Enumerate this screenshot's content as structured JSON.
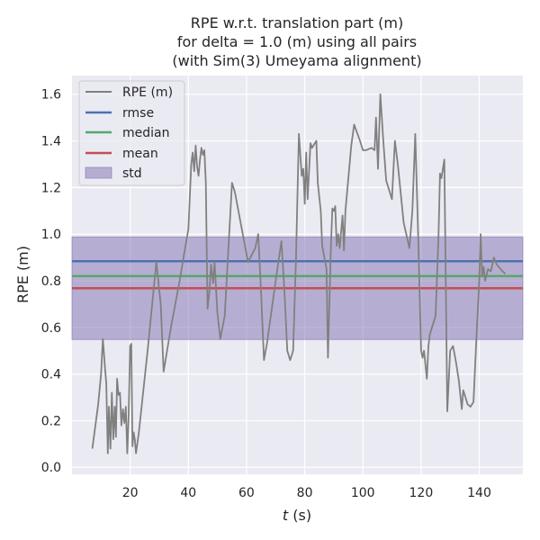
{
  "chart_data": {
    "type": "line",
    "title": [
      "RPE w.r.t. translation part (m)",
      "for delta = 1.0 (m) using all pairs",
      "(with Sim(3) Umeyama alignment)"
    ],
    "xlabel_var": "t",
    "xlabel_unit": " (s)",
    "ylabel": "RPE (m)",
    "xlim": [
      0,
      155
    ],
    "ylim": [
      -0.03,
      1.68
    ],
    "xticks": [
      20,
      40,
      60,
      80,
      100,
      120,
      140
    ],
    "yticks": [
      0.0,
      0.2,
      0.4,
      0.6,
      0.8,
      1.0,
      1.2,
      1.4,
      1.6
    ],
    "ytick_labels": [
      "0.0",
      "0.2",
      "0.4",
      "0.6",
      "0.8",
      "1.0",
      "1.2",
      "1.4",
      "1.6"
    ],
    "grid": true,
    "legend_position": "top-left",
    "series": [
      {
        "name": "RPE (m)",
        "color": "#808080",
        "points": [
          [
            7,
            0.08
          ],
          [
            9,
            0.27
          ],
          [
            10,
            0.4
          ],
          [
            10.6,
            0.55
          ],
          [
            11.4,
            0.42
          ],
          [
            11.8,
            0.36
          ],
          [
            12.3,
            0.06
          ],
          [
            12.7,
            0.26
          ],
          [
            13.2,
            0.08
          ],
          [
            13.7,
            0.32
          ],
          [
            14.2,
            0.12
          ],
          [
            14.7,
            0.26
          ],
          [
            15.1,
            0.13
          ],
          [
            15.5,
            0.38
          ],
          [
            16,
            0.31
          ],
          [
            16.5,
            0.32
          ],
          [
            17,
            0.18
          ],
          [
            17.5,
            0.25
          ],
          [
            18,
            0.19
          ],
          [
            18.5,
            0.26
          ],
          [
            19,
            0.06
          ],
          [
            19.5,
            0.23
          ],
          [
            20,
            0.52
          ],
          [
            20.4,
            0.53
          ],
          [
            20.8,
            0.09
          ],
          [
            21.2,
            0.15
          ],
          [
            21.6,
            0.12
          ],
          [
            22,
            0.06
          ],
          [
            23,
            0.15
          ],
          [
            26,
            0.5
          ],
          [
            29,
            0.88
          ],
          [
            30.5,
            0.7
          ],
          [
            31.5,
            0.41
          ],
          [
            34,
            0.6
          ],
          [
            37,
            0.8
          ],
          [
            39,
            0.95
          ],
          [
            40,
            1.02
          ],
          [
            41,
            1.3
          ],
          [
            41.5,
            1.35
          ],
          [
            42,
            1.27
          ],
          [
            42.5,
            1.38
          ],
          [
            43,
            1.29
          ],
          [
            43.5,
            1.25
          ],
          [
            44,
            1.32
          ],
          [
            44.5,
            1.37
          ],
          [
            45,
            1.34
          ],
          [
            45.5,
            1.36
          ],
          [
            46,
            1.22
          ],
          [
            46.6,
            0.68
          ],
          [
            47.2,
            0.75
          ],
          [
            47.8,
            0.87
          ],
          [
            48.5,
            0.79
          ],
          [
            49,
            0.88
          ],
          [
            50,
            0.66
          ],
          [
            51,
            0.55
          ],
          [
            52.5,
            0.65
          ],
          [
            55,
            1.22
          ],
          [
            56,
            1.18
          ],
          [
            59,
            0.98
          ],
          [
            60.5,
            0.88
          ],
          [
            63,
            0.94
          ],
          [
            64,
            1.0
          ],
          [
            65,
            0.75
          ],
          [
            66,
            0.46
          ],
          [
            67,
            0.53
          ],
          [
            70,
            0.8
          ],
          [
            72,
            0.97
          ],
          [
            73,
            0.76
          ],
          [
            74,
            0.5
          ],
          [
            75,
            0.46
          ],
          [
            76,
            0.5
          ],
          [
            77,
            0.9
          ],
          [
            78,
            1.43
          ],
          [
            79,
            1.25
          ],
          [
            79.5,
            1.28
          ],
          [
            80,
            1.13
          ],
          [
            80.5,
            1.35
          ],
          [
            81,
            1.15
          ],
          [
            82,
            1.39
          ],
          [
            82.5,
            1.37
          ],
          [
            84,
            1.4
          ],
          [
            84.5,
            1.22
          ],
          [
            85.5,
            1.1
          ],
          [
            86,
            0.95
          ],
          [
            87.5,
            0.85
          ],
          [
            88,
            0.47
          ],
          [
            89,
            0.95
          ],
          [
            89.5,
            1.11
          ],
          [
            90,
            1.1
          ],
          [
            90.5,
            1.12
          ],
          [
            91,
            0.95
          ],
          [
            91.5,
            1.0
          ],
          [
            92,
            0.94
          ],
          [
            93,
            1.08
          ],
          [
            93.5,
            0.93
          ],
          [
            94,
            1.1
          ],
          [
            96,
            1.38
          ],
          [
            97,
            1.47
          ],
          [
            99,
            1.4
          ],
          [
            100,
            1.36
          ],
          [
            101,
            1.36
          ],
          [
            103,
            1.37
          ],
          [
            104,
            1.36
          ],
          [
            104.5,
            1.5
          ],
          [
            105.2,
            1.28
          ],
          [
            106,
            1.6
          ],
          [
            107,
            1.4
          ],
          [
            108,
            1.23
          ],
          [
            110,
            1.15
          ],
          [
            111,
            1.4
          ],
          [
            112,
            1.3
          ],
          [
            114,
            1.05
          ],
          [
            116,
            0.94
          ],
          [
            117,
            1.1
          ],
          [
            118,
            1.43
          ],
          [
            119,
            1.0
          ],
          [
            120,
            0.5
          ],
          [
            120.5,
            0.47
          ],
          [
            121,
            0.5
          ],
          [
            122,
            0.38
          ],
          [
            122.5,
            0.52
          ],
          [
            123,
            0.57
          ],
          [
            125,
            0.65
          ],
          [
            126,
            1.0
          ],
          [
            126.5,
            1.26
          ],
          [
            127,
            1.24
          ],
          [
            128,
            1.32
          ],
          [
            129,
            0.24
          ],
          [
            130,
            0.5
          ],
          [
            131,
            0.52
          ],
          [
            132,
            0.45
          ],
          [
            133,
            0.37
          ],
          [
            134,
            0.25
          ],
          [
            134.5,
            0.33
          ],
          [
            135,
            0.31
          ],
          [
            136,
            0.27
          ],
          [
            137,
            0.26
          ],
          [
            138,
            0.28
          ],
          [
            139,
            0.55
          ],
          [
            140,
            0.8
          ],
          [
            140.5,
            1.0
          ],
          [
            141,
            0.82
          ],
          [
            141.5,
            0.86
          ],
          [
            142,
            0.8
          ],
          [
            143,
            0.85
          ],
          [
            144,
            0.84
          ],
          [
            145,
            0.9
          ],
          [
            146,
            0.87
          ],
          [
            148,
            0.84
          ],
          [
            149,
            0.83
          ]
        ]
      }
    ],
    "stats": {
      "rmse": {
        "name": "rmse",
        "value": 0.884,
        "color": "#4c72b0"
      },
      "median": {
        "name": "median",
        "value": 0.82,
        "color": "#55a868"
      },
      "mean": {
        "name": "mean",
        "value": 0.768,
        "color": "#c44e52"
      },
      "std": {
        "name": "std",
        "low": 0.548,
        "high": 0.988,
        "color": "#8172b2"
      }
    }
  }
}
